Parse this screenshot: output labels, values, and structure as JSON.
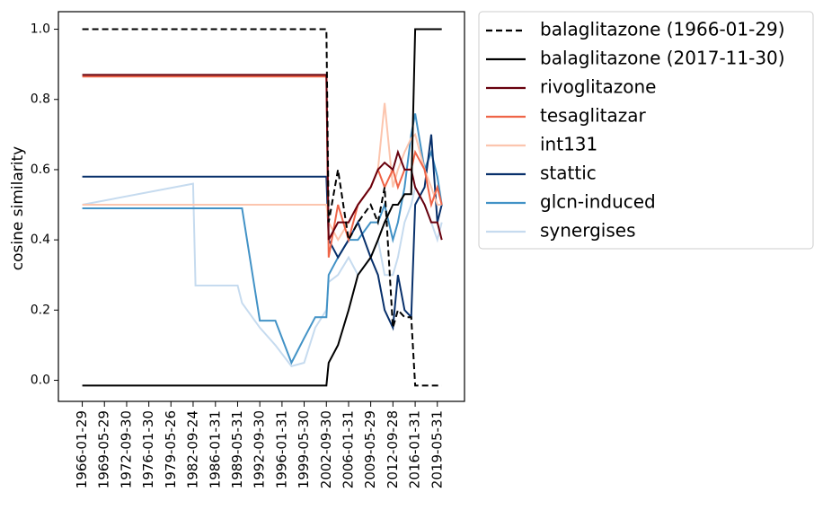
{
  "chart_data": {
    "type": "line",
    "y_label": "cosine similarity",
    "x": [
      "1966-01-29",
      "1982-09-24",
      "1983-01-31",
      "1989-05-31",
      "1990-01-31",
      "1992-09-30",
      "1995-01-31",
      "1997-06-30",
      "1999-05-30",
      "2001-01-31",
      "2002-09-30",
      "2003-01-31",
      "2004-06-30",
      "2006-01-31",
      "2007-06-30",
      "2009-05-29",
      "2010-06-30",
      "2011-06-30",
      "2012-09-28",
      "2013-06-30",
      "2014-06-30",
      "2015-06-30",
      "2016-01-31",
      "2017-06-30",
      "2018-06-30",
      "2019-05-31",
      "2020-01-31"
    ],
    "xlim": [
      "1962-06-30",
      "2023-06-30"
    ],
    "xticks": [
      "1966-01-29",
      "1969-05-29",
      "1972-09-30",
      "1976-01-30",
      "1979-05-26",
      "1982-09-24",
      "1986-01-31",
      "1989-05-31",
      "1992-09-30",
      "1996-01-31",
      "1999-05-30",
      "2002-09-30",
      "2006-01-31",
      "2009-05-29",
      "2012-09-28",
      "2016-01-31",
      "2019-05-31"
    ],
    "ylim": [
      -0.06,
      1.05
    ],
    "yticks": [
      {
        "value": 0,
        "label": "0.0"
      },
      0.2,
      0.4,
      0.6,
      0.8,
      {
        "value": 1,
        "label": "1.0"
      }
    ],
    "grid": false,
    "legend": "outside upper right",
    "series": [
      {
        "name": "balaglitazone (1966-01-29)",
        "color": "#000000",
        "linestyle": "dashed",
        "values": [
          1,
          1,
          1,
          1,
          1,
          1,
          1,
          1,
          1,
          1,
          1,
          0.45,
          0.6,
          0.4,
          0.45,
          0.5,
          0.45,
          0.55,
          0.15,
          0.2,
          0.18,
          0.18,
          -0.015,
          -0.015,
          -0.015,
          -0.015,
          -0.015
        ]
      },
      {
        "name": "balaglitazone (2017-11-30)",
        "color": "#000000",
        "linestyle": "solid",
        "values": [
          -0.015,
          -0.015,
          -0.015,
          -0.015,
          -0.015,
          -0.015,
          -0.015,
          -0.015,
          -0.015,
          -0.015,
          -0.015,
          0.05,
          0.1,
          0.2,
          0.3,
          0.35,
          0.4,
          0.45,
          0.5,
          0.5,
          0.53,
          0.53,
          1,
          1,
          1,
          1,
          1
        ]
      },
      {
        "name": "rivoglitazone",
        "color": "#67000d",
        "linestyle": "solid",
        "values": [
          0.87,
          0.87,
          0.87,
          0.87,
          0.87,
          0.87,
          0.87,
          0.87,
          0.87,
          0.87,
          0.87,
          0.4,
          0.45,
          0.45,
          0.5,
          0.55,
          0.6,
          0.62,
          0.6,
          0.65,
          0.6,
          0.6,
          0.55,
          0.5,
          0.45,
          0.45,
          0.4
        ]
      },
      {
        "name": "tesaglitazar",
        "color": "#ef6548",
        "linestyle": "solid",
        "values": [
          0.865,
          0.865,
          0.865,
          0.865,
          0.865,
          0.865,
          0.865,
          0.865,
          0.865,
          0.865,
          0.865,
          0.35,
          0.5,
          0.4,
          0.5,
          0.55,
          0.6,
          0.55,
          0.6,
          0.55,
          0.6,
          0.6,
          0.65,
          0.6,
          0.5,
          0.55,
          0.5
        ]
      },
      {
        "name": "int131",
        "color": "#fcc5ae",
        "linestyle": "solid",
        "values": [
          0.5,
          0.5,
          0.5,
          0.5,
          0.5,
          0.5,
          0.5,
          0.5,
          0.5,
          0.5,
          0.5,
          0.45,
          0.4,
          0.45,
          0.5,
          0.55,
          0.6,
          0.79,
          0.55,
          0.6,
          0.65,
          0.69,
          0.7,
          0.6,
          0.55,
          0.5,
          0.5
        ]
      },
      {
        "name": "stattic",
        "color": "#08306b",
        "linestyle": "solid",
        "values": [
          0.58,
          0.58,
          0.58,
          0.58,
          0.58,
          0.58,
          0.58,
          0.58,
          0.58,
          0.58,
          0.58,
          0.4,
          0.35,
          0.4,
          0.45,
          0.35,
          0.3,
          0.2,
          0.15,
          0.3,
          0.2,
          0.18,
          0.5,
          0.55,
          0.7,
          0.45,
          0.5
        ]
      },
      {
        "name": "glcn-induced",
        "color": "#4292c6",
        "linestyle": "solid",
        "values": [
          0.49,
          0.49,
          0.49,
          0.49,
          0.49,
          0.17,
          0.17,
          0.05,
          0.12,
          0.18,
          0.18,
          0.3,
          0.35,
          0.4,
          0.4,
          0.45,
          0.45,
          0.5,
          0.4,
          0.45,
          0.55,
          0.7,
          0.76,
          0.6,
          0.65,
          0.58,
          0.5
        ]
      },
      {
        "name": "synergises",
        "color": "#c6dbef",
        "linestyle": "solid",
        "values": [
          0.5,
          0.56,
          0.27,
          0.27,
          0.22,
          0.15,
          0.1,
          0.04,
          0.05,
          0.15,
          0.2,
          0.28,
          0.3,
          0.35,
          0.3,
          0.35,
          0.4,
          0.3,
          0.3,
          0.35,
          0.45,
          0.5,
          0.55,
          0.5,
          0.45,
          0.4,
          0.45
        ]
      }
    ]
  }
}
